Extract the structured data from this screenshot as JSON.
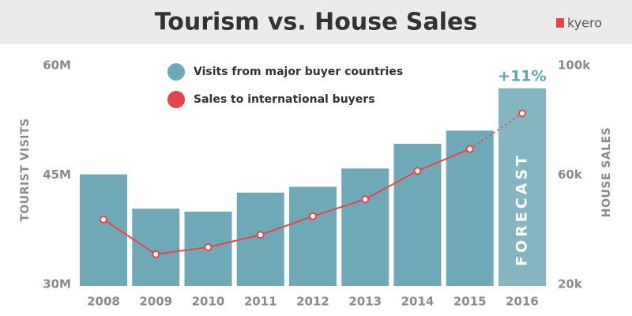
{
  "brand": "kyero",
  "chart_data": {
    "type": "bar-line",
    "title": "Tourism vs. House Sales",
    "ylabel": "TOURIST VISITS",
    "y2label": "HOUSE SALES",
    "categories": [
      "2008",
      "2009",
      "2010",
      "2011",
      "2012",
      "2013",
      "2014",
      "2015",
      "2016"
    ],
    "series": [
      {
        "name": "Visits from major buyer countries",
        "type": "bar",
        "color": "#6fa8b6",
        "axis": "y",
        "values": [
          45.3,
          40.6,
          40.2,
          42.8,
          43.6,
          46.1,
          49.5,
          51.3,
          57.1
        ]
      },
      {
        "name": "Sales to international buyers",
        "type": "line",
        "color": "#e0474c",
        "axis": "y2",
        "values": [
          44.3,
          31.6,
          34.2,
          38.7,
          45.5,
          51.7,
          62.1,
          70.1,
          83.1
        ]
      }
    ],
    "ylim": [
      30,
      60
    ],
    "yticks": [
      {
        "value": 30,
        "label": "30M"
      },
      {
        "value": 45,
        "label": "45M"
      },
      {
        "value": 60,
        "label": "60M"
      }
    ],
    "y2lim": [
      20,
      100
    ],
    "y2ticks": [
      {
        "value": 20,
        "label": "20k"
      },
      {
        "value": 60,
        "label": "60k"
      },
      {
        "value": 100,
        "label": "100k"
      }
    ],
    "annotations": [
      "+11%",
      "FORECAST"
    ],
    "grid": false
  }
}
